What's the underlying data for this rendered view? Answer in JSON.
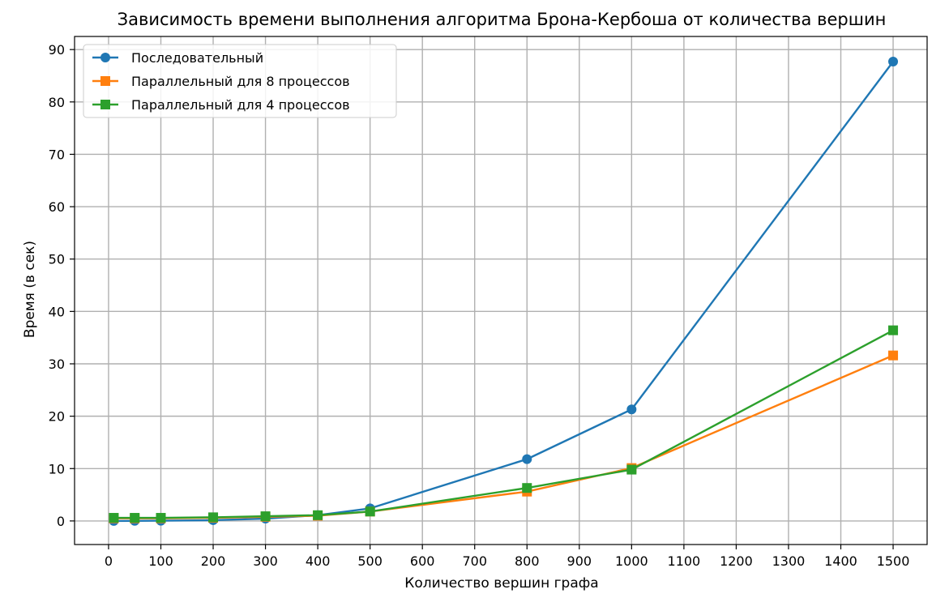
{
  "chart_data": {
    "type": "line",
    "title": "Зависимость времени выполнения алгоритма Брона-Кербоша от количества вершин",
    "xlabel": "Количество вершин графа",
    "ylabel": "Время (в сек)",
    "xlim": [
      -65,
      1565
    ],
    "ylim": [
      -4.5,
      92.5
    ],
    "xticks": [
      0,
      100,
      200,
      300,
      400,
      500,
      600,
      700,
      800,
      900,
      1000,
      1100,
      1200,
      1300,
      1400,
      1500
    ],
    "yticks": [
      0,
      10,
      20,
      30,
      40,
      50,
      60,
      70,
      80,
      90
    ],
    "grid": true,
    "legend_position": "top-left",
    "x": [
      10,
      50,
      100,
      200,
      300,
      400,
      500,
      800,
      1000,
      1500
    ],
    "series": [
      {
        "name": "Последовательный",
        "color": "#1f77b4",
        "marker": "circle",
        "values": [
          0.0,
          0.02,
          0.05,
          0.15,
          0.45,
          1.1,
          2.4,
          11.8,
          21.3,
          87.7
        ]
      },
      {
        "name": "Параллельный для 8 процессов",
        "color": "#ff7f0e",
        "marker": "square",
        "values": [
          0.5,
          0.5,
          0.5,
          0.6,
          0.8,
          1.0,
          1.8,
          5.6,
          10.1,
          31.6
        ]
      },
      {
        "name": "Параллельный для 4 процессов",
        "color": "#2ca02c",
        "marker": "square",
        "values": [
          0.6,
          0.6,
          0.6,
          0.7,
          0.9,
          1.1,
          1.8,
          6.3,
          9.8,
          36.4
        ]
      }
    ]
  }
}
